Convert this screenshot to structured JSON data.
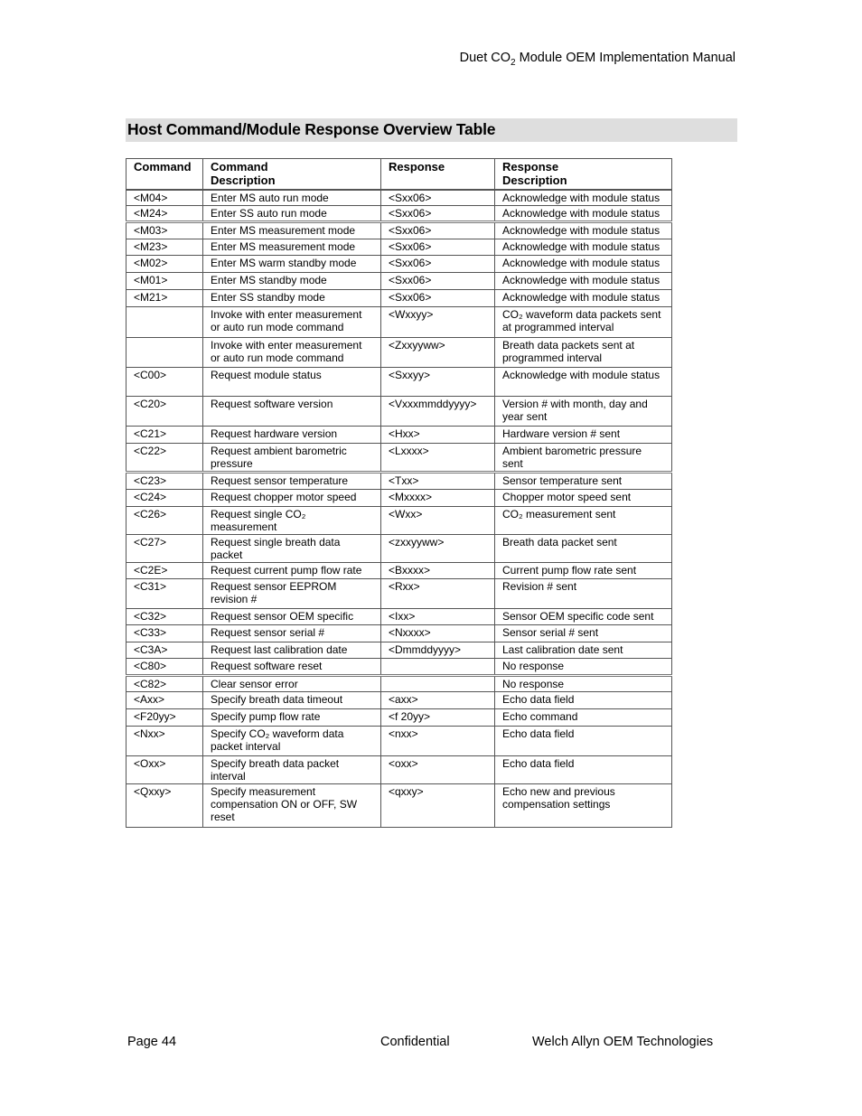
{
  "header": {
    "title_pre": "Duet CO",
    "title_sub": "2",
    "title_post": " Module OEM Implementation Manual"
  },
  "section_title": "Host Command/Module Response Overview Table",
  "table": {
    "columns": [
      {
        "line1": "Command",
        "line2": ""
      },
      {
        "line1": "Command",
        "line2": "Description"
      },
      {
        "line1": "Response",
        "line2": ""
      },
      {
        "line1": "Response",
        "line2": "Description"
      }
    ],
    "rows": [
      {
        "cells": [
          "<M04>",
          "Enter MS auto run mode",
          "<Sxx06>",
          "Acknowledge with module status"
        ],
        "h": 17
      },
      {
        "cells": [
          "<M24>",
          "Enter SS auto run mode",
          "<Sxx06>",
          "Acknowledge with module status"
        ],
        "h": 17
      },
      {
        "cells": [
          "<M03>",
          "Enter MS measurement mode",
          "<Sxx06>",
          "Acknowledge with module status"
        ],
        "h": 19,
        "dbl": true
      },
      {
        "cells": [
          "<M23>",
          "Enter MS measurement mode",
          "<Sxx06>",
          "Acknowledge with module status"
        ],
        "h": 18
      },
      {
        "cells": [
          "<M02>",
          "Enter MS warm standby mode",
          "<Sxx06>",
          "Acknowledge with module status"
        ],
        "h": 19
      },
      {
        "cells": [
          "<M01>",
          "Enter MS standby mode",
          "<Sxx06>",
          "Acknowledge with module status"
        ],
        "h": 19
      },
      {
        "cells": [
          "<M21>",
          "Enter SS standby mode",
          "<Sxx06>",
          "Acknowledge with module status"
        ],
        "h": 19
      },
      {
        "cells": [
          "",
          "Invoke with enter measurement or auto run mode command",
          "<Wxxyy>",
          "CO₂ waveform data packets sent at programmed interval"
        ],
        "h": 34
      },
      {
        "cells": [
          "",
          "Invoke with enter measurement or auto run mode command",
          "<Zxxyyww>",
          "Breath data packets sent at programmed interval"
        ],
        "h": 33
      },
      {
        "cells": [
          "<C00>",
          "Request module status",
          "<Sxxyy>",
          "Acknowledge with module status"
        ],
        "h": 32
      },
      {
        "cells": [
          "<C20>",
          "Request software version",
          "<Vxxxmmddyyyy>",
          "Version # with month, day and year sent"
        ],
        "h": 33
      },
      {
        "cells": [
          "<C21>",
          "Request hardware version",
          "<Hxx>",
          "Hardware version # sent"
        ],
        "h": 19
      },
      {
        "cells": [
          "<C22>",
          "Request ambient barometric pressure",
          "<Lxxxx>",
          "Ambient barometric pressure sent"
        ],
        "h": 32
      },
      {
        "cells": [
          "<C23>",
          "Request sensor temperature",
          "<Txx>",
          "Sensor temperature sent"
        ],
        "h": 19,
        "dbl": true
      },
      {
        "cells": [
          "<C24>",
          "Request chopper motor speed",
          "<Mxxxx>",
          "Chopper motor speed sent"
        ],
        "h": 19
      },
      {
        "cells": [
          "<C26>",
          "Request single CO₂ measurement",
          "<Wxx>",
          "CO₂ measurement sent"
        ],
        "h": 19
      },
      {
        "cells": [
          "<C27>",
          "Request single breath data packet",
          "<zxxyyww>",
          "Breath data packet sent"
        ],
        "h": 19
      },
      {
        "cells": [
          "<C2E>",
          "Request current pump flow rate",
          "<Bxxxx>",
          "Current pump flow rate sent"
        ],
        "h": 18
      },
      {
        "cells": [
          "<C31>",
          "Request sensor EEPROM revision #",
          "<Rxx>",
          "Revision # sent"
        ],
        "h": 33
      },
      {
        "cells": [
          "<C32>",
          "Request sensor OEM specific",
          "<Ixx>",
          "Sensor OEM specific code sent"
        ],
        "h": 18
      },
      {
        "cells": [
          "<C33>",
          "Request sensor serial #",
          "<Nxxxx>",
          "Sensor serial # sent"
        ],
        "h": 19
      },
      {
        "cells": [
          "<C3A>",
          "Request last calibration date",
          "<Dmmddyyyy>",
          "Last calibration date sent"
        ],
        "h": 18
      },
      {
        "cells": [
          "<C80>",
          "Request software reset",
          "",
          "No response"
        ],
        "h": 19
      },
      {
        "cells": [
          "<C82>",
          "Clear sensor error",
          "",
          "No response"
        ],
        "h": 18,
        "dbl": true
      },
      {
        "cells": [
          "<Axx>",
          "Specify breath data timeout",
          "<axx>",
          "Echo data field"
        ],
        "h": 19
      },
      {
        "cells": [
          "<F20yy>",
          "Specify pump flow rate",
          "<f 20yy>",
          "Echo command"
        ],
        "h": 19
      },
      {
        "cells": [
          "<Nxx>",
          "Specify CO₂ waveform data packet interval",
          "<nxx>",
          "Echo data field"
        ],
        "h": 33
      },
      {
        "cells": [
          "<Oxx>",
          "Specify breath data packet interval",
          "<oxx>",
          "Echo data field"
        ],
        "h": 19
      },
      {
        "cells": [
          "<Qxxy>",
          "Specify measurement compensation ON or OFF, SW reset",
          "<qxxy>",
          "Echo new and previous compensation settings"
        ],
        "h": 48
      }
    ]
  },
  "footer": {
    "page": "Page 44",
    "center": "Confidential",
    "right": "Welch Allyn OEM Technologies"
  }
}
